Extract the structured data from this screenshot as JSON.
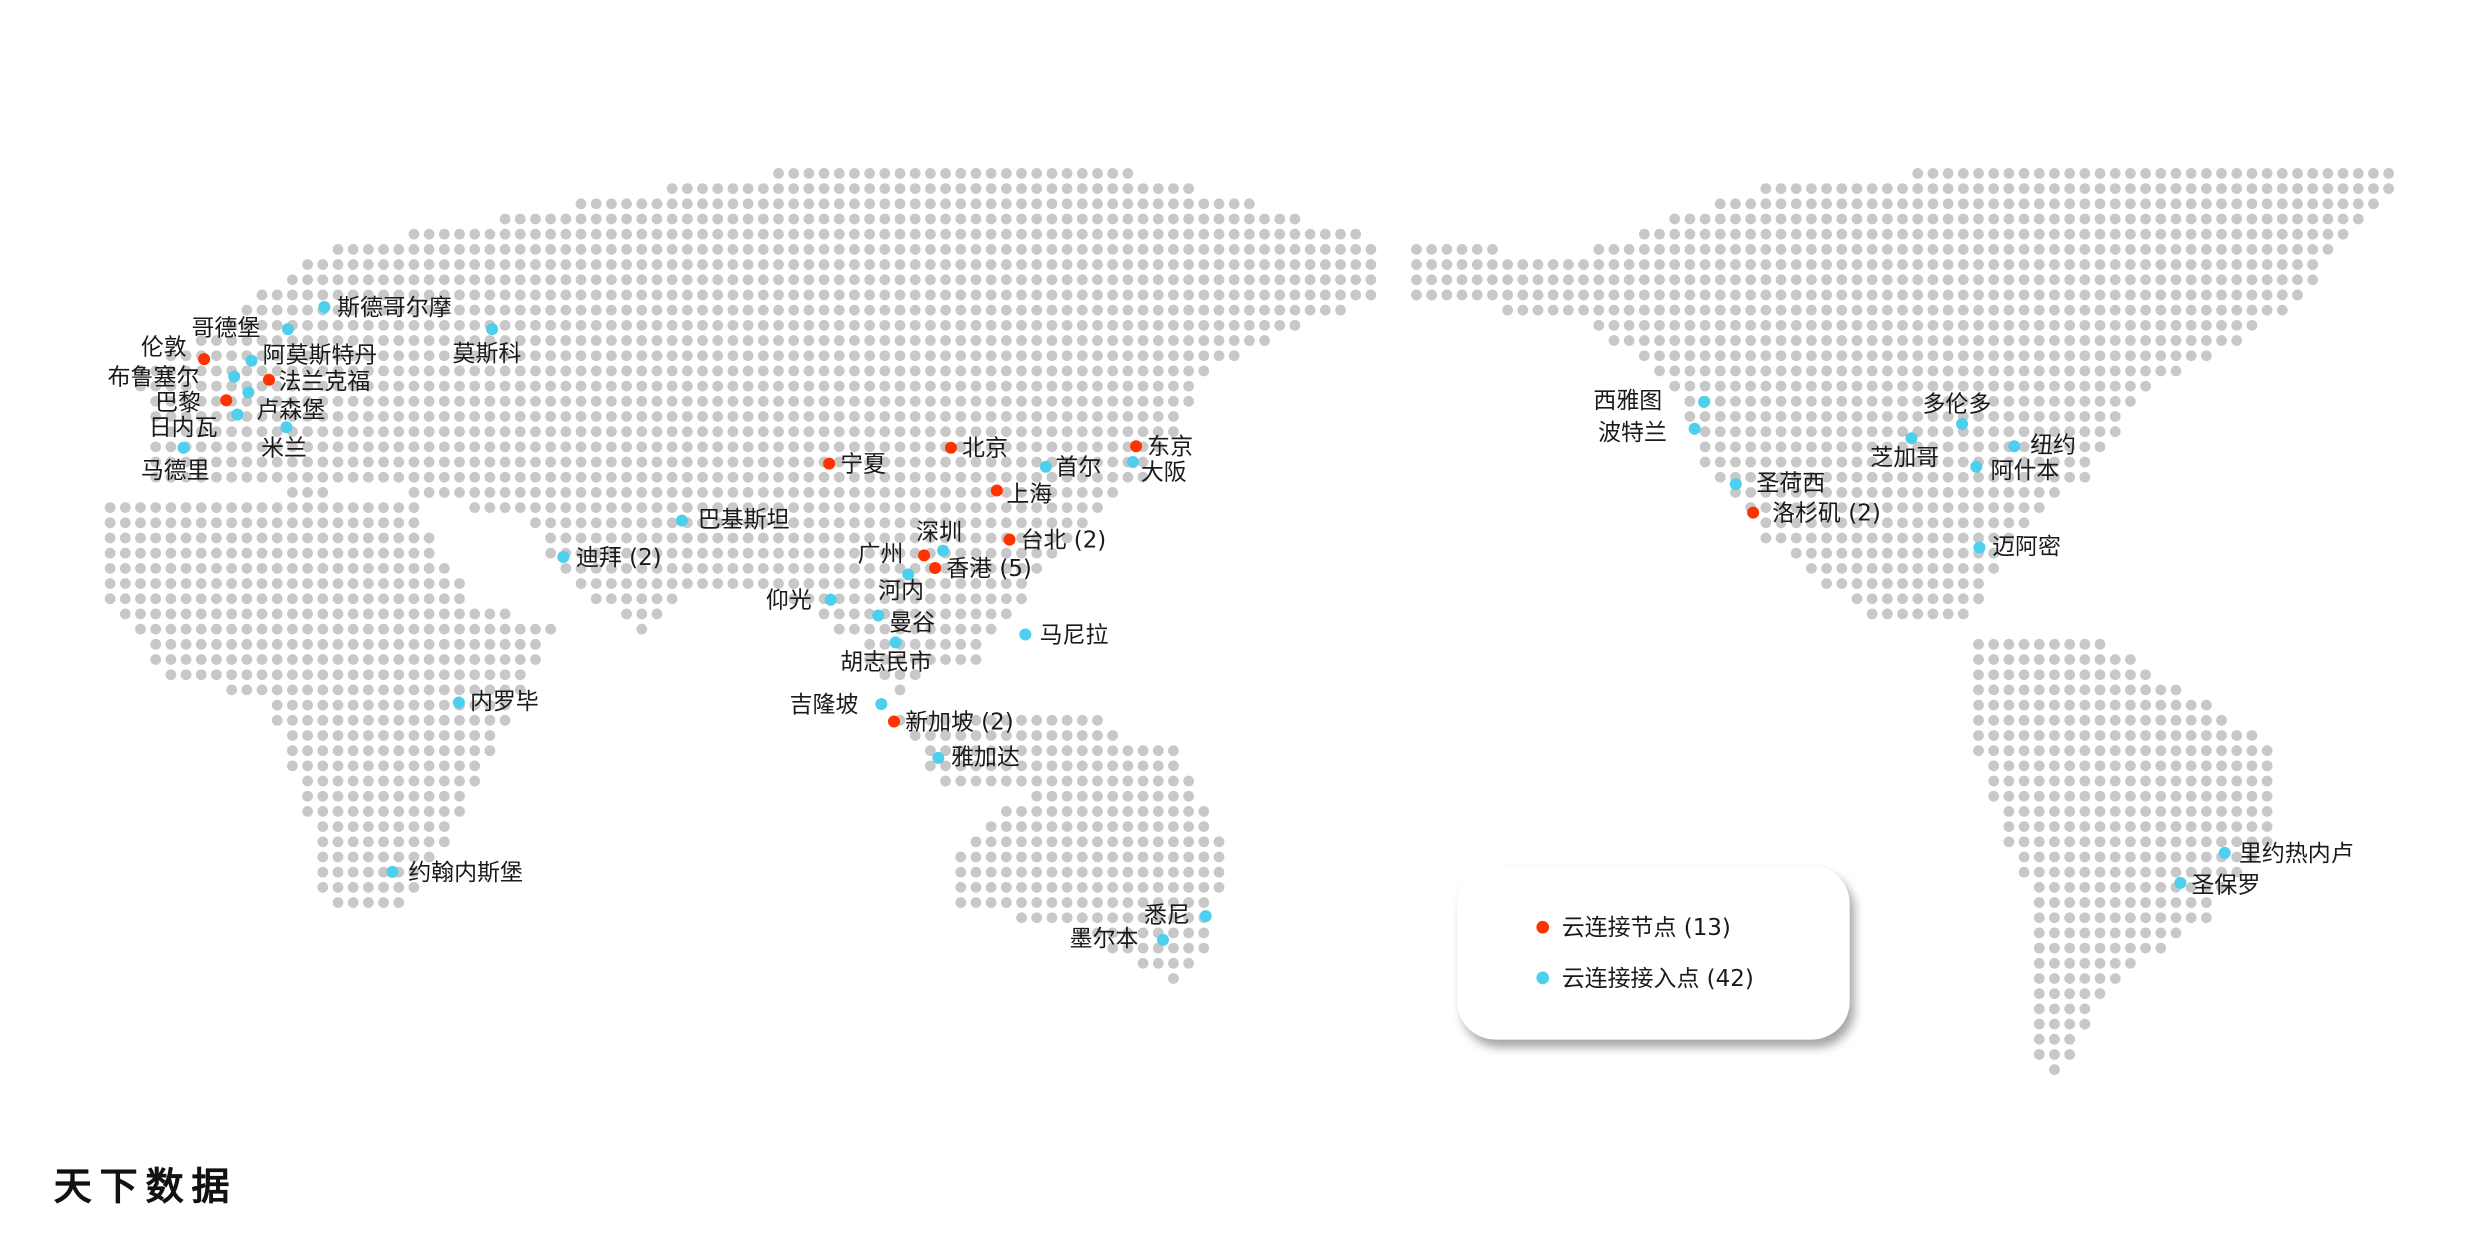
{
  "brand": "天下数据",
  "colors": {
    "node": "#ff3300",
    "access": "#4dcfee",
    "land_dot": "#c8c8c8"
  },
  "legend": {
    "node_label": "云连接节点 (13)",
    "access_label": "云连接接入点 (42)"
  },
  "cities": [
    {
      "name": "伦敦",
      "type": "node"
    },
    {
      "name": "法兰克福",
      "type": "node"
    },
    {
      "name": "巴黎",
      "type": "node"
    },
    {
      "name": "宁夏",
      "type": "node"
    },
    {
      "name": "北京",
      "type": "node"
    },
    {
      "name": "东京",
      "type": "node"
    },
    {
      "name": "上海",
      "type": "node"
    },
    {
      "name": "台北 (2)",
      "type": "node"
    },
    {
      "name": "广州",
      "type": "node"
    },
    {
      "name": "香港 (5)",
      "type": "node"
    },
    {
      "name": "新加坡 (2)",
      "type": "node"
    },
    {
      "name": "洛杉矶 (2)",
      "type": "node"
    },
    {
      "name": "斯德哥尔摩",
      "type": "access"
    },
    {
      "name": "哥德堡",
      "type": "access"
    },
    {
      "name": "阿莫斯特丹",
      "type": "access"
    },
    {
      "name": "布鲁塞尔",
      "type": "access"
    },
    {
      "name": "卢森堡",
      "type": "access"
    },
    {
      "name": "日内瓦",
      "type": "access"
    },
    {
      "name": "米兰",
      "type": "access"
    },
    {
      "name": "马德里",
      "type": "access"
    },
    {
      "name": "莫斯科",
      "type": "access"
    },
    {
      "name": "首尔",
      "type": "access"
    },
    {
      "name": "大阪",
      "type": "access"
    },
    {
      "name": "巴基斯坦",
      "type": "access"
    },
    {
      "name": "迪拜 (2)",
      "type": "access"
    },
    {
      "name": "深圳",
      "type": "access"
    },
    {
      "name": "河内",
      "type": "access"
    },
    {
      "name": "仰光",
      "type": "access"
    },
    {
      "name": "曼谷",
      "type": "access"
    },
    {
      "name": "胡志民市",
      "type": "access"
    },
    {
      "name": "马尼拉",
      "type": "access"
    },
    {
      "name": "吉隆坡",
      "type": "access"
    },
    {
      "name": "雅加达",
      "type": "access"
    },
    {
      "name": "内罗毕",
      "type": "access"
    },
    {
      "name": "约翰内斯堡",
      "type": "access"
    },
    {
      "name": "悉尼",
      "type": "access"
    },
    {
      "name": "墨尔本",
      "type": "access"
    },
    {
      "name": "西雅图",
      "type": "access"
    },
    {
      "name": "波特兰",
      "type": "access"
    },
    {
      "name": "圣荷西",
      "type": "access"
    },
    {
      "name": "多伦多",
      "type": "access"
    },
    {
      "name": "芝加哥",
      "type": "access"
    },
    {
      "name": "纽约",
      "type": "access"
    },
    {
      "name": "阿什本",
      "type": "access"
    },
    {
      "name": "迈阿密",
      "type": "access"
    },
    {
      "name": "里约热内卢",
      "type": "access"
    },
    {
      "name": "圣保罗",
      "type": "access"
    }
  ]
}
